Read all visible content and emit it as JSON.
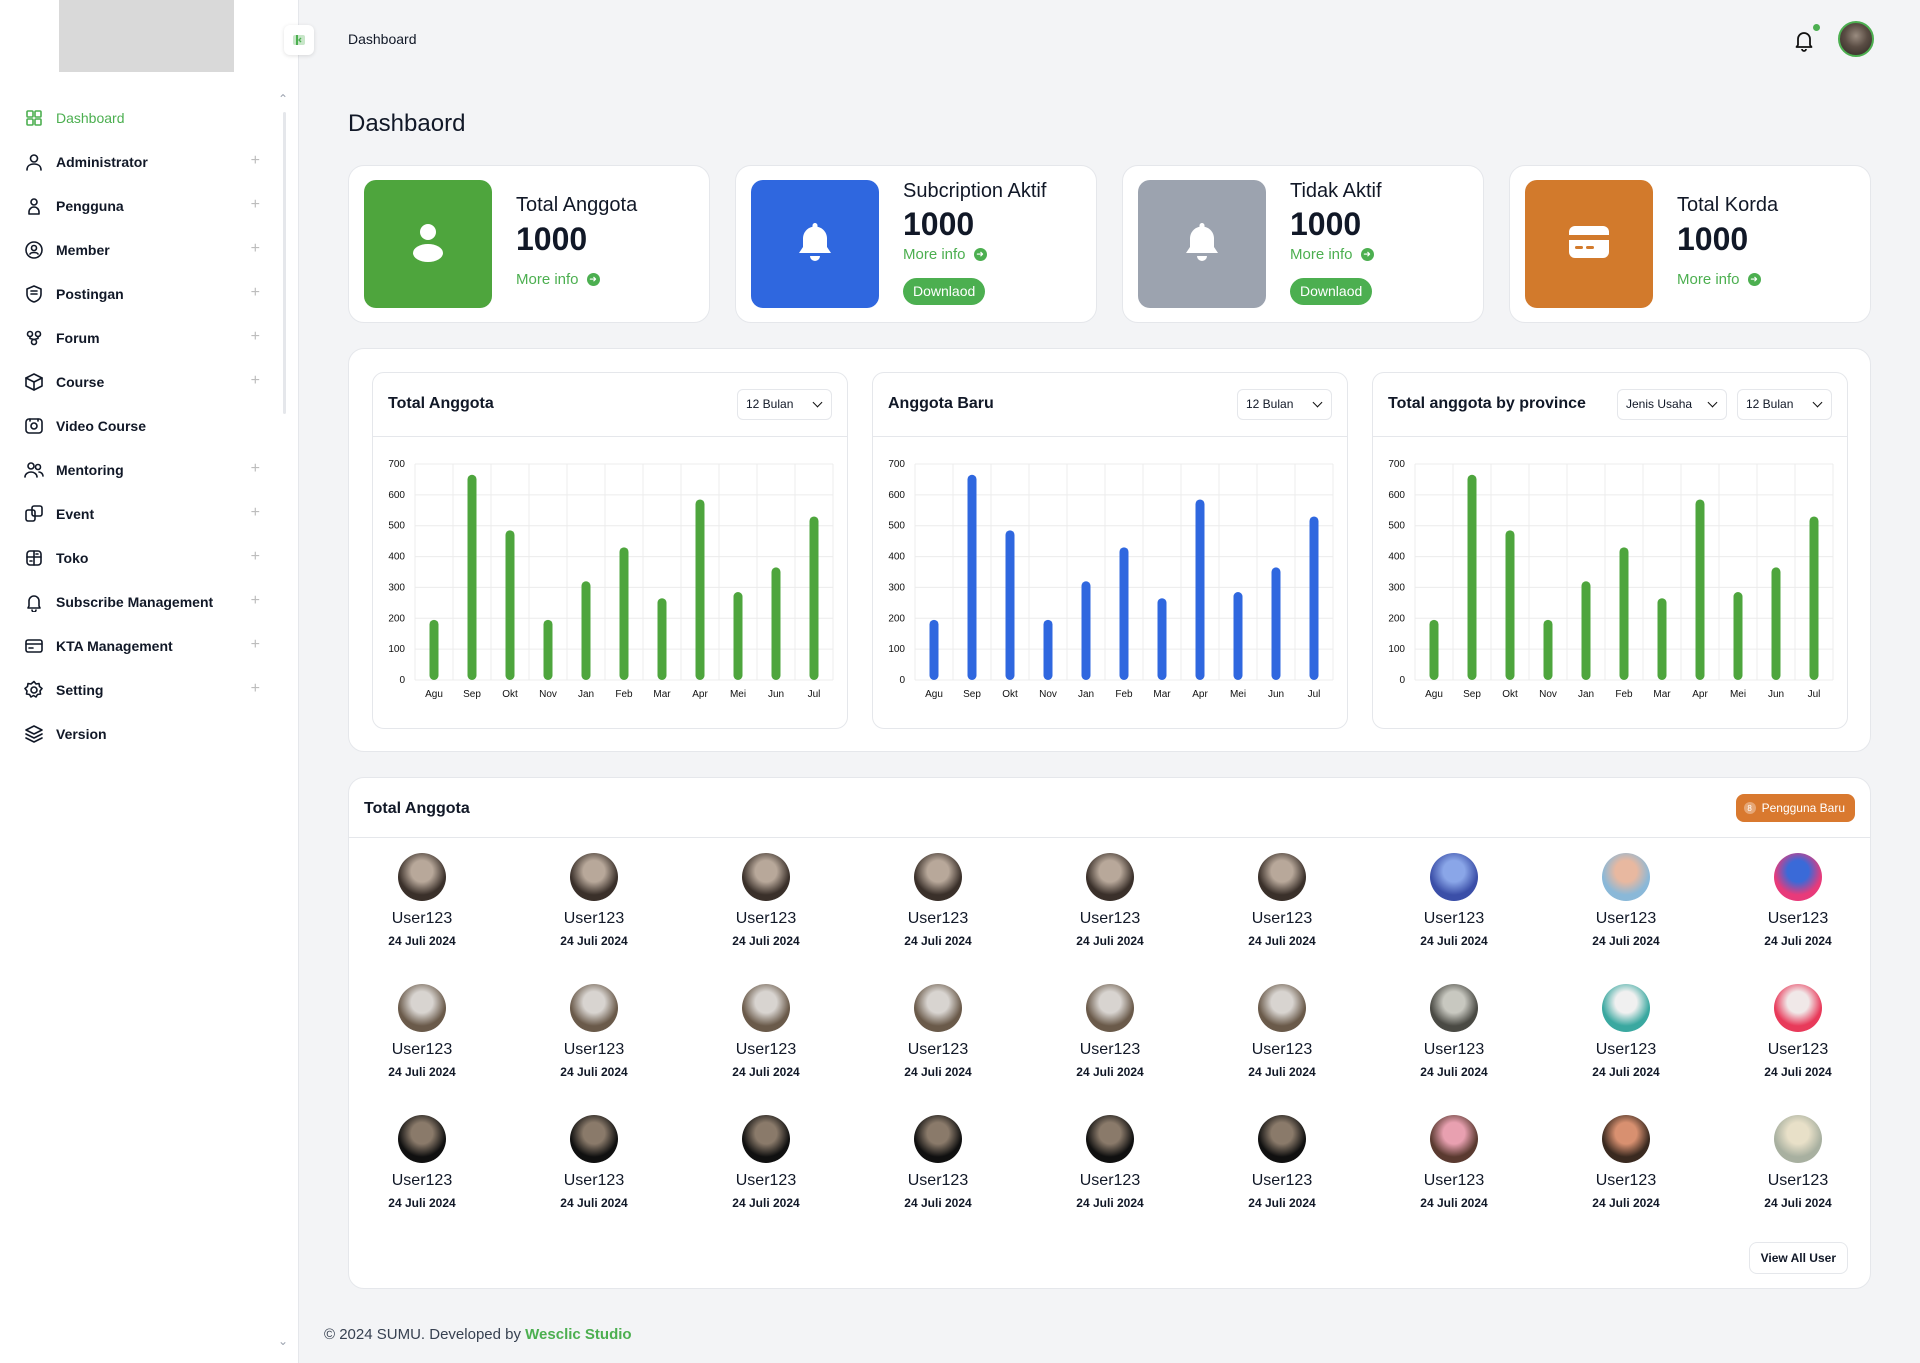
{
  "breadcrumb": "Dashboard",
  "page_title": "Dashbaord",
  "sidebar": {
    "items": [
      {
        "label": "Dashboard",
        "icon": "grid-icon",
        "active": true,
        "expandable": false
      },
      {
        "label": "Administrator",
        "icon": "user-icon",
        "expandable": true
      },
      {
        "label": "Pengguna",
        "icon": "person-icon",
        "expandable": true
      },
      {
        "label": "Member",
        "icon": "member-shield-icon",
        "expandable": true
      },
      {
        "label": "Postingan",
        "icon": "post-icon",
        "expandable": true
      },
      {
        "label": "Forum",
        "icon": "forum-icon",
        "expandable": true
      },
      {
        "label": "Course",
        "icon": "cube-icon",
        "expandable": true
      },
      {
        "label": "Video Course",
        "icon": "video-icon",
        "expandable": false
      },
      {
        "label": "Mentoring",
        "icon": "users-icon",
        "expandable": true
      },
      {
        "label": "Event",
        "icon": "event-icon",
        "expandable": true
      },
      {
        "label": "Toko",
        "icon": "store-icon",
        "expandable": true
      },
      {
        "label": "Subscribe Management",
        "icon": "bell-icon",
        "expandable": true
      },
      {
        "label": "KTA Management",
        "icon": "card-icon",
        "expandable": true
      },
      {
        "label": "Setting",
        "icon": "gear-icon",
        "expandable": true
      },
      {
        "label": "Version",
        "icon": "layers-icon",
        "expandable": false
      }
    ]
  },
  "stats": [
    {
      "title": "Total Anggota",
      "value": "1000",
      "more": "More info",
      "color": "#4ea53d",
      "icon": "person-icon"
    },
    {
      "title": "Subcription Aktif",
      "value": "1000",
      "more": "More info",
      "button": "Downlaod",
      "color": "#2f67df",
      "icon": "bell-icon"
    },
    {
      "title": "Tidak Aktif",
      "value": "1000",
      "more": "More info",
      "button": "Downlaod",
      "color": "#9ca3af",
      "icon": "bell-icon"
    },
    {
      "title": "Total Korda",
      "value": "1000",
      "more": "More info",
      "color": "#d27a2c",
      "icon": "card-icon"
    }
  ],
  "charts": [
    {
      "title": "Total Anggota",
      "selects": [
        "12 Bulan"
      ],
      "color": "#4ea53d"
    },
    {
      "title": "Anggota Baru",
      "selects": [
        "12 Bulan"
      ],
      "color": "#2f67df"
    },
    {
      "title": "Total anggota by province",
      "selects": [
        "Jenis Usaha",
        "12 Bulan"
      ],
      "color": "#4ea53d"
    }
  ],
  "chart_data": {
    "type": "bar",
    "categories": [
      "Agu",
      "Sep",
      "Okt",
      "Nov",
      "Jan",
      "Feb",
      "Mar",
      "Apr",
      "Mei",
      "Jun",
      "Jul"
    ],
    "values": [
      195,
      665,
      485,
      195,
      320,
      430,
      265,
      585,
      285,
      365,
      530
    ],
    "ylim": [
      0,
      700
    ],
    "yticks": [
      0,
      100,
      200,
      300,
      400,
      500,
      600,
      700
    ],
    "grid": true
  },
  "members": {
    "title": "Total Anggota",
    "badge": "Pengguna Baru",
    "badge_count": "8",
    "view_all": "View All User",
    "users": [
      {
        "name": "User123",
        "date": "24 Juli 2024",
        "c1": "#b8a89a",
        "c2": "#3a302a"
      },
      {
        "name": "User123",
        "date": "24 Juli 2024",
        "c1": "#b8a89a",
        "c2": "#3a302a"
      },
      {
        "name": "User123",
        "date": "24 Juli 2024",
        "c1": "#b8a89a",
        "c2": "#3a302a"
      },
      {
        "name": "User123",
        "date": "24 Juli 2024",
        "c1": "#b8a89a",
        "c2": "#3a302a"
      },
      {
        "name": "User123",
        "date": "24 Juli 2024",
        "c1": "#b8a89a",
        "c2": "#3a302a"
      },
      {
        "name": "User123",
        "date": "24 Juli 2024",
        "c1": "#b8a89a",
        "c2": "#3a302a"
      },
      {
        "name": "User123",
        "date": "24 Juli 2024",
        "c1": "#8aa6e8",
        "c2": "#3b4fa8"
      },
      {
        "name": "User123",
        "date": "24 Juli 2024",
        "c1": "#e8b8a0",
        "c2": "#8ab8d8"
      },
      {
        "name": "User123",
        "date": "24 Juli 2024",
        "c1": "#3a6ad8",
        "c2": "#e83a7a"
      },
      {
        "name": "User123",
        "date": "24 Juli 2024",
        "c1": "#d8d4d0",
        "c2": "#6a5a4a"
      },
      {
        "name": "User123",
        "date": "24 Juli 2024",
        "c1": "#d8d4d0",
        "c2": "#6a5a4a"
      },
      {
        "name": "User123",
        "date": "24 Juli 2024",
        "c1": "#d8d4d0",
        "c2": "#6a5a4a"
      },
      {
        "name": "User123",
        "date": "24 Juli 2024",
        "c1": "#d8d4d0",
        "c2": "#6a5a4a"
      },
      {
        "name": "User123",
        "date": "24 Juli 2024",
        "c1": "#d8d4d0",
        "c2": "#6a5a4a"
      },
      {
        "name": "User123",
        "date": "24 Juli 2024",
        "c1": "#d8d4d0",
        "c2": "#6a5a4a"
      },
      {
        "name": "User123",
        "date": "24 Juli 2024",
        "c1": "#c8c8c0",
        "c2": "#4a4a44"
      },
      {
        "name": "User123",
        "date": "24 Juli 2024",
        "c1": "#f0f0f0",
        "c2": "#3aa8a0"
      },
      {
        "name": "User123",
        "date": "24 Juli 2024",
        "c1": "#f0e8e8",
        "c2": "#e83a5a"
      },
      {
        "name": "User123",
        "date": "24 Juli 2024",
        "c1": "#8a7a6a",
        "c2": "#101010"
      },
      {
        "name": "User123",
        "date": "24 Juli 2024",
        "c1": "#8a7a6a",
        "c2": "#101010"
      },
      {
        "name": "User123",
        "date": "24 Juli 2024",
        "c1": "#8a7a6a",
        "c2": "#101010"
      },
      {
        "name": "User123",
        "date": "24 Juli 2024",
        "c1": "#8a7a6a",
        "c2": "#101010"
      },
      {
        "name": "User123",
        "date": "24 Juli 2024",
        "c1": "#8a7a6a",
        "c2": "#101010"
      },
      {
        "name": "User123",
        "date": "24 Juli 2024",
        "c1": "#8a7a6a",
        "c2": "#101010"
      },
      {
        "name": "User123",
        "date": "24 Juli 2024",
        "c1": "#e8a0b0",
        "c2": "#5a3a30"
      },
      {
        "name": "User123",
        "date": "24 Juli 2024",
        "c1": "#d89070",
        "c2": "#3a2a20"
      },
      {
        "name": "User123",
        "date": "24 Juli 2024",
        "c1": "#e8e0c8",
        "c2": "#a8b0a0"
      }
    ]
  },
  "footer": {
    "text": "© 2024 SUMU. Developed by",
    "studio": "Wesclic Studio"
  }
}
